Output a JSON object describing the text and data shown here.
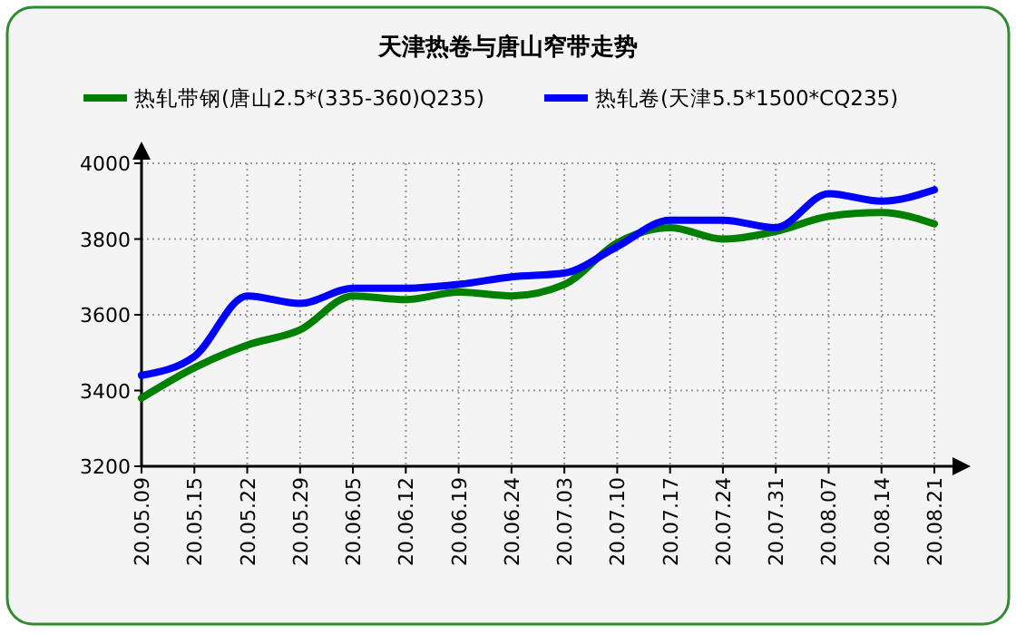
{
  "chart_data": {
    "type": "line",
    "title": "天津热卷与唐山窄带走势",
    "categories": [
      "20.05.09",
      "20.05.15",
      "20.05.22",
      "20.05.29",
      "20.06.05",
      "20.06.12",
      "20.06.19",
      "20.06.24",
      "20.07.03",
      "20.07.10",
      "20.07.17",
      "20.07.24",
      "20.07.31",
      "20.08.07",
      "20.08.14",
      "20.08.21"
    ],
    "series": [
      {
        "name": "热轧带钢(唐山2.5*(335-360)Q235)",
        "color": "#008000",
        "values": [
          3380,
          3460,
          3520,
          3560,
          3650,
          3640,
          3660,
          3650,
          3680,
          3790,
          3830,
          3800,
          3820,
          3860,
          3870,
          3840
        ]
      },
      {
        "name": "热轧卷(天津5.5*1500*CQ235)",
        "color": "#0000ff",
        "values": [
          3440,
          3490,
          3650,
          3630,
          3670,
          3670,
          3680,
          3700,
          3710,
          3780,
          3850,
          3850,
          3830,
          3920,
          3900,
          3930
        ]
      }
    ],
    "ylim": [
      3200,
      4000
    ],
    "yticks": [
      3200,
      3400,
      3600,
      3800,
      4000
    ],
    "grid": true,
    "legend": "top",
    "marker": "none",
    "line_style": "solid"
  }
}
